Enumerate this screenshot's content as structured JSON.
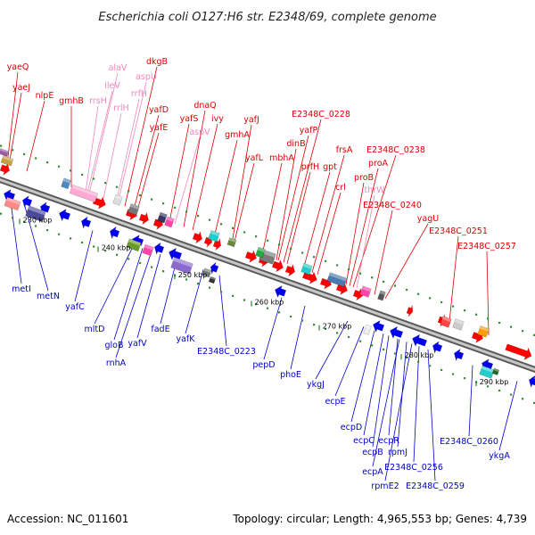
{
  "title": "Escherichia coli O127:H6 str. E2348/69, complete genome",
  "footer": {
    "accession": "Accession: NC_011601",
    "summary": "Topology: circular; Length: 4,965,553 bp; Genes: 4,739"
  },
  "colors": {
    "forward_label": "#dd0000",
    "reverse_label": "#0000cc",
    "rna_label": "#ee88bb",
    "backbone": "#8a8a8a",
    "forward_arrow": "#ff0000",
    "reverse_arrow": "#0000ee",
    "tick": "#228822"
  },
  "ticks": [
    "230 kbp",
    "240 kbp",
    "250 kbp",
    "260 kbp",
    "270 kbp",
    "280 kbp",
    "290 kbp"
  ],
  "forward_labels": [
    "yaeQ",
    "yaeJ",
    "nlpE",
    "gmhB",
    "alaV",
    "ileV",
    "rrsH",
    "rrlH",
    "dkgB",
    "aspU",
    "rrfH",
    "yafD",
    "yafE",
    "yafS",
    "aspV",
    "dnaQ",
    "ivy",
    "gmhA",
    "yafJ",
    "yafL",
    "mbhA",
    "dinB",
    "yafP",
    "E2348C_0228",
    "prfH",
    "gpt",
    "frsA",
    "crl",
    "E2348C_0238",
    "proA",
    "proB",
    "thrW",
    "E2348C_0240",
    "yagU",
    "E2348C_0251",
    "E2348C_0257"
  ],
  "reverse_labels": [
    "metI",
    "metN",
    "yafC",
    "mltD",
    "gloB",
    "rnhA",
    "yafV",
    "fadE",
    "yafK",
    "E2348C_0223",
    "pepD",
    "phoE",
    "ykgJ",
    "ecpE",
    "ecpD",
    "ecpC",
    "ecpR",
    "ecpB",
    "rpmJ",
    "ecpA",
    "E2348C_0256",
    "rpmE2",
    "E2348C_0259",
    "E2348C_0260",
    "ykgA"
  ]
}
